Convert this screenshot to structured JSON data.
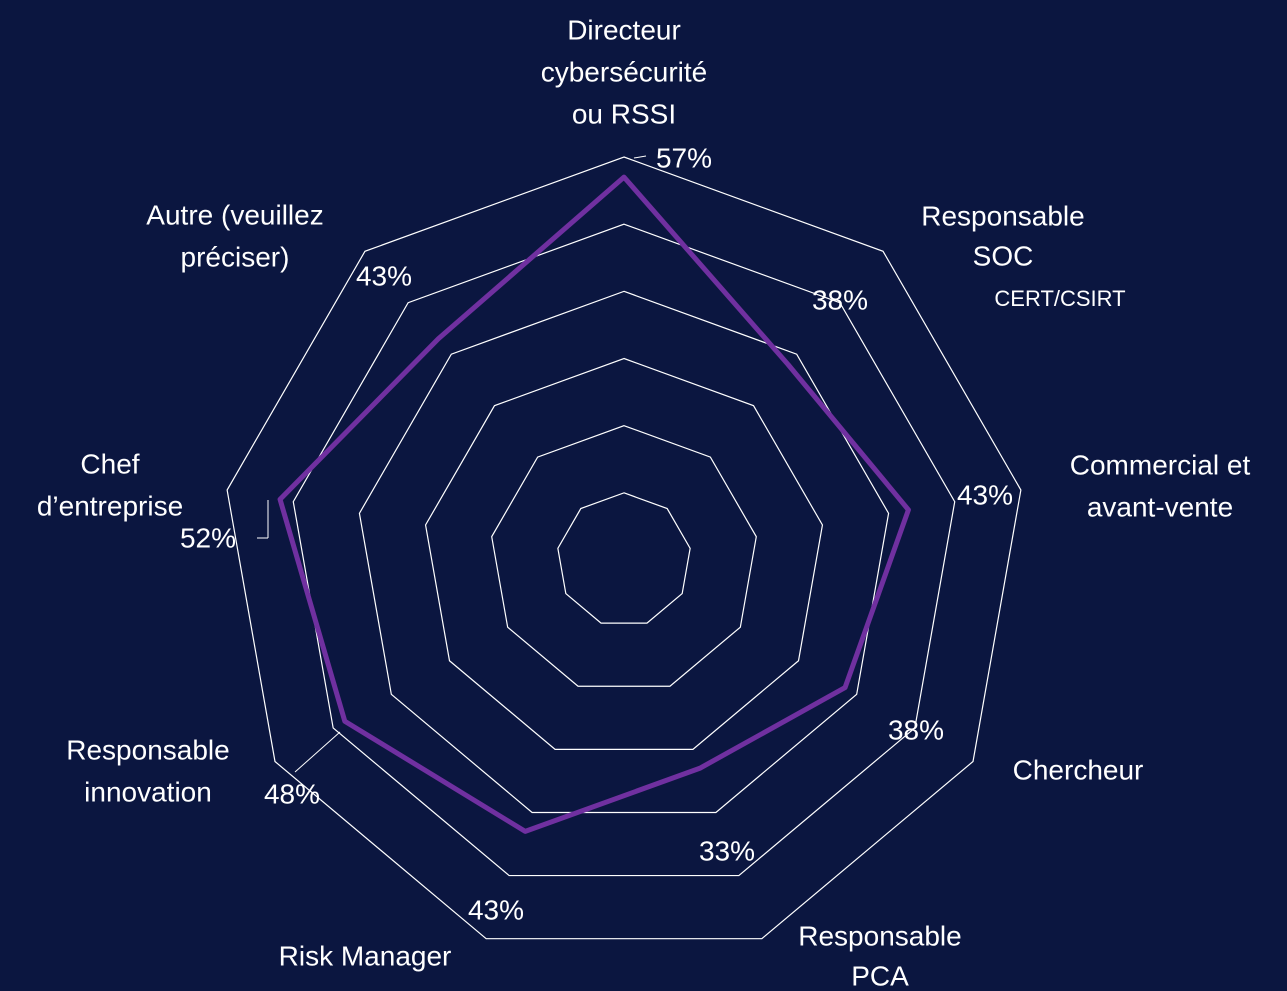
{
  "chart_data": {
    "type": "radar",
    "categories": [
      [
        "Directeur",
        "cybersécurité",
        "ou RSSI"
      ],
      [
        "Responsable",
        "SOC",
        "CERT/CSIRT"
      ],
      [
        "Commercial et",
        "avant-vente"
      ],
      [
        "Chercheur"
      ],
      [
        "Responsable",
        "PCA"
      ],
      [
        "Risk Manager"
      ],
      [
        "Responsable",
        "innovation"
      ],
      [
        "Chef",
        "d’entreprise"
      ],
      [
        "Autre (veuillez",
        "préciser)"
      ]
    ],
    "values": [
      57,
      38,
      43,
      38,
      33,
      43,
      48,
      52,
      43
    ],
    "value_labels": [
      "57%",
      "38%",
      "43%",
      "38%",
      "33%",
      "43%",
      "48%",
      "52%",
      "43%"
    ],
    "color": "#7030a0",
    "ylim": [
      0,
      60
    ],
    "yticks": [
      10,
      20,
      30,
      40,
      50,
      60
    ],
    "grid": true
  }
}
